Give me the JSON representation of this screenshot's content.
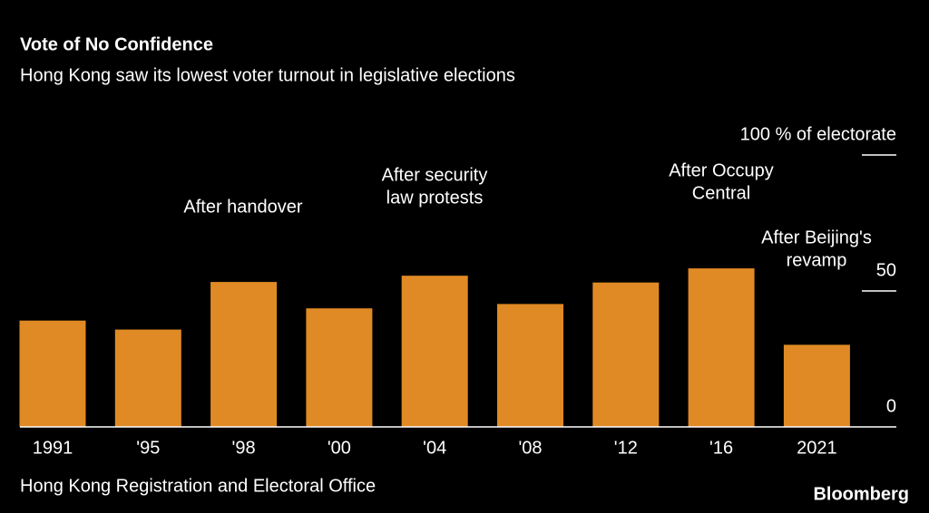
{
  "chart_data": {
    "type": "bar",
    "title": "Vote of No Confidence",
    "subtitle": "Hong Kong saw its lowest voter turnout in legislative elections",
    "categories": [
      "1991",
      "'95",
      "'98",
      "'00",
      "'04",
      "'08",
      "'12",
      "'16",
      "2021"
    ],
    "values": [
      39.1,
      35.8,
      53.3,
      43.6,
      55.6,
      45.2,
      53.1,
      58.3,
      30.2
    ],
    "color": "#e08a25",
    "ylim": [
      0,
      100
    ],
    "yticks": [
      0,
      50,
      {
        "value": 100,
        "label": "100 % of electorate"
      }
    ],
    "annotations": [
      [
        "After handover"
      ],
      [
        "After security",
        "law protests"
      ],
      [
        "After Occupy",
        "Central"
      ],
      [
        "After Beijing's",
        "revamp"
      ]
    ],
    "source": "Hong Kong Registration and Electoral Office",
    "logo": "Bloomberg"
  }
}
